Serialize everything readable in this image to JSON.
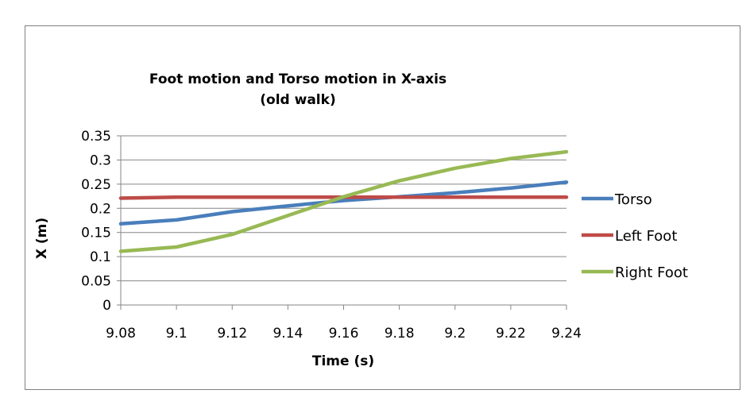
{
  "chart_data": {
    "type": "line",
    "title": [
      "Foot motion and Torso motion in X-axis",
      "(old walk)"
    ],
    "xlabel": "Time (s)",
    "ylabel": "X (m)",
    "x": [
      "9.08",
      "9.1",
      "9.12",
      "9.14",
      "9.16",
      "9.18",
      "9.2",
      "9.22",
      "9.24"
    ],
    "ylim": [
      0,
      0.35
    ],
    "yticks": [
      "0",
      "0.05",
      "0.1",
      "0.15",
      "0.2",
      "0.25",
      "0.3",
      "0.35"
    ],
    "grid": true,
    "legend_position": "right",
    "series": [
      {
        "name": "Torso",
        "color": "#4A7EBB",
        "values": [
          0.168,
          0.176,
          0.193,
          0.205,
          0.216,
          0.224,
          0.232,
          0.242,
          0.254
        ]
      },
      {
        "name": "Left Foot",
        "color": "#BE4B48",
        "values": [
          0.221,
          0.223,
          0.223,
          0.223,
          0.223,
          0.223,
          0.223,
          0.223,
          0.223
        ]
      },
      {
        "name": "Right Foot",
        "color": "#98B954",
        "values": [
          0.111,
          0.12,
          0.146,
          0.185,
          0.224,
          0.257,
          0.283,
          0.303,
          0.317
        ]
      }
    ]
  }
}
